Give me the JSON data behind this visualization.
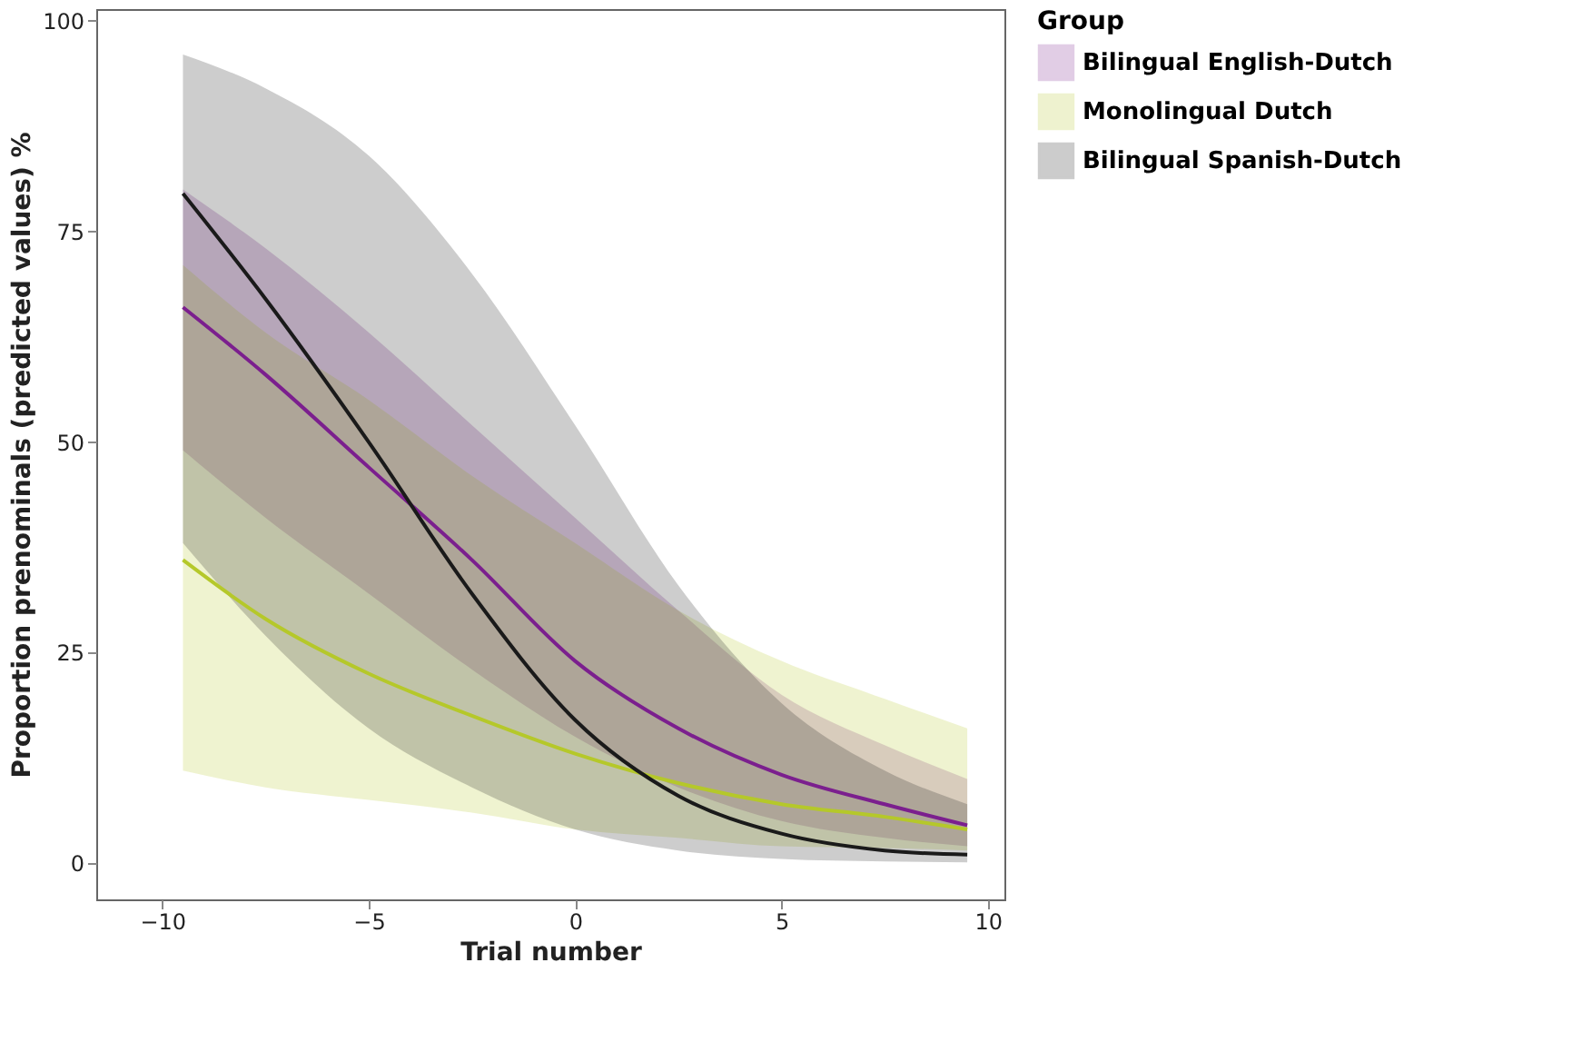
{
  "chart_data": {
    "type": "line",
    "xlabel": "Trial number",
    "ylabel": "Proportion prenominals (predicted values) %",
    "legend_title": "Group",
    "legend": "top right",
    "grid": false,
    "marker": "none",
    "line_style": "solid",
    "x": [
      -9.5,
      -7.5,
      -5,
      -2.5,
      0,
      2.5,
      5,
      7.5,
      9.5
    ],
    "xlim": [
      -11.6,
      10.4
    ],
    "xticks": [
      -10,
      -5,
      0,
      5,
      10
    ],
    "ylim": [
      -4.3,
      101.4
    ],
    "yticks": [
      0,
      25,
      50,
      75,
      100
    ],
    "series": [
      {
        "name": "Bilingual English-Dutch",
        "color": "#7b1f8e",
        "values": [
          66,
          58,
          47,
          36,
          24,
          16,
          10.5,
          7,
          4.5
        ],
        "lower": [
          49,
          41,
          32,
          23,
          15,
          9,
          5,
          3,
          2
        ],
        "upper": [
          80,
          73,
          63,
          52,
          41,
          30,
          20,
          14,
          10
        ]
      },
      {
        "name": "Monolingual Dutch",
        "color": "#b5c82a",
        "values": [
          36,
          29,
          22.5,
          17.5,
          13,
          9.5,
          7,
          5.5,
          4
        ],
        "lower": [
          11,
          9,
          7.5,
          6,
          4,
          3,
          2,
          1.8,
          1.5
        ],
        "upper": [
          71,
          63,
          55,
          46,
          38,
          30,
          24,
          19.5,
          16
        ]
      },
      {
        "name": "Bilingual Spanish-Dutch",
        "color": "#1a1a1a",
        "values": [
          79.5,
          67,
          50,
          32,
          17,
          8,
          3.5,
          1.5,
          1
        ],
        "lower": [
          38,
          27,
          16,
          9,
          4,
          1.5,
          0.5,
          0.2,
          0.1
        ],
        "upper": [
          96,
          92,
          84,
          70,
          52,
          33,
          19,
          11,
          7
        ]
      }
    ]
  }
}
